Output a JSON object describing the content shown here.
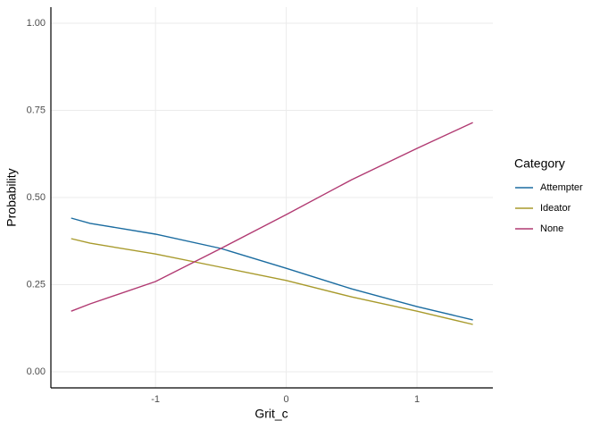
{
  "chart_data": {
    "type": "line",
    "x_label": "Grit_c",
    "y_label": "Probability",
    "legend_title": "Category",
    "legend_position": "right",
    "grid": true,
    "x": [
      -1.645,
      -1.5,
      -1,
      -0.5,
      0,
      0.5,
      1,
      1.427
    ],
    "series": [
      {
        "name": "Attempter",
        "color": "#1b6ca0",
        "values": [
          0.441,
          0.426,
          0.395,
          0.354,
          0.297,
          0.238,
          0.187,
          0.149
        ]
      },
      {
        "name": "Ideator",
        "color": "#a89a2c",
        "values": [
          0.382,
          0.369,
          0.338,
          0.3,
          0.262,
          0.215,
          0.174,
          0.136
        ]
      },
      {
        "name": "None",
        "color": "#b13a72",
        "values": [
          0.174,
          0.195,
          0.259,
          0.354,
          0.451,
          0.551,
          0.641,
          0.715
        ]
      }
    ],
    "xlim": [
      -1.8,
      1.58
    ],
    "xticks": [
      -1,
      0,
      1
    ],
    "ylim": [
      -0.046,
      1.046
    ],
    "yticks": [
      {
        "value": 0,
        "label": "0.00"
      },
      {
        "value": 0.25,
        "label": "0.25"
      },
      {
        "value": 0.5,
        "label": "0.50"
      },
      {
        "value": 0.75,
        "label": "0.75"
      },
      {
        "value": 1,
        "label": "1.00"
      }
    ]
  }
}
